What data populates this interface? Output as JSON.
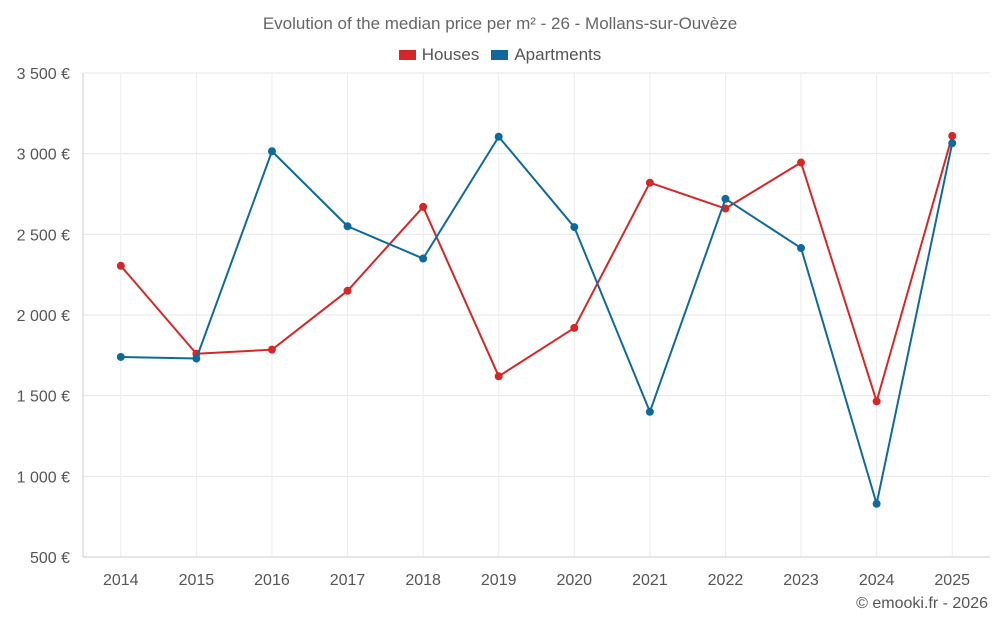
{
  "chart_data": {
    "type": "line",
    "title": "Evolution of the median price per m² - 26 - Mollans-sur-Ouvèze",
    "categories": [
      "2014",
      "2015",
      "2016",
      "2017",
      "2018",
      "2019",
      "2020",
      "2021",
      "2022",
      "2023",
      "2024",
      "2025"
    ],
    "series": [
      {
        "name": "Houses",
        "color": "#d62728",
        "values": [
          2305,
          1760,
          1785,
          2150,
          2670,
          1620,
          1920,
          2820,
          2660,
          2945,
          1465,
          3110
        ]
      },
      {
        "name": "Apartments",
        "color": "#0f6a9b",
        "values": [
          1740,
          1730,
          3015,
          2550,
          2350,
          3105,
          2545,
          1400,
          2720,
          2415,
          830,
          3065
        ]
      }
    ],
    "y_ticks": [
      "3 500 €",
      "3 000 €",
      "2 500 €",
      "2 000 €",
      "1 500 €",
      "1 000 €",
      "500 €"
    ],
    "y_tick_values": [
      3500,
      3000,
      2500,
      2000,
      1500,
      1000,
      500
    ],
    "ylim": [
      500,
      3500
    ],
    "xlabel": "",
    "ylabel": "",
    "legend_position": "top-center",
    "grid": true
  },
  "credit": "© emooki.fr - 2026"
}
